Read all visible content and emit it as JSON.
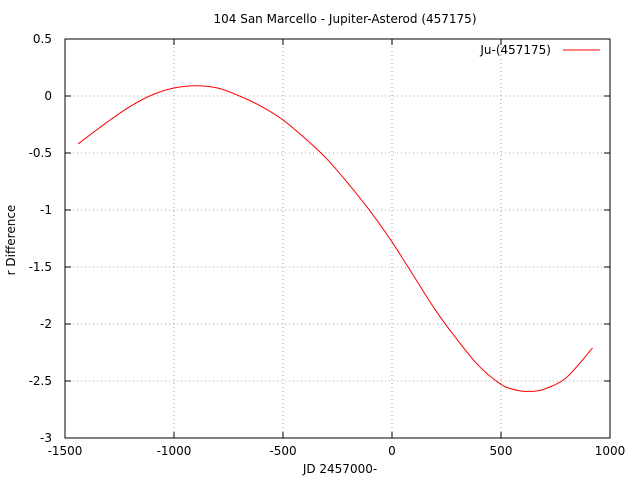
{
  "chart_data": {
    "type": "line",
    "title": "104 San Marcello - Jupiter-Asterod (457175)",
    "xlabel": "JD 2457000-",
    "ylabel": "r Difference",
    "xlim": [
      -1500,
      1000
    ],
    "ylim": [
      -3,
      0.5
    ],
    "xticks": [
      -1500,
      -1000,
      -500,
      0,
      500,
      1000
    ],
    "yticks": [
      -3,
      -2.5,
      -2,
      -1.5,
      -1,
      -0.5,
      0,
      0.5
    ],
    "grid": true,
    "legend_position": "top-right",
    "series": [
      {
        "name": "Ju-(457175)",
        "color": "#ff0000",
        "x": [
          -1440,
          -1300,
          -1200,
          -1100,
          -1000,
          -900,
          -800,
          -700,
          -600,
          -500,
          -400,
          -300,
          -200,
          -100,
          0,
          100,
          200,
          300,
          400,
          500,
          550,
          600,
          630,
          650,
          700,
          800,
          920
        ],
        "y": [
          -0.42,
          -0.22,
          -0.09,
          0.01,
          0.07,
          0.09,
          0.07,
          0.0,
          -0.09,
          -0.21,
          -0.37,
          -0.55,
          -0.77,
          -1.01,
          -1.28,
          -1.58,
          -1.88,
          -2.14,
          -2.37,
          -2.53,
          -2.57,
          -2.59,
          -2.59,
          -2.59,
          -2.57,
          -2.47,
          -2.21
        ]
      }
    ]
  }
}
